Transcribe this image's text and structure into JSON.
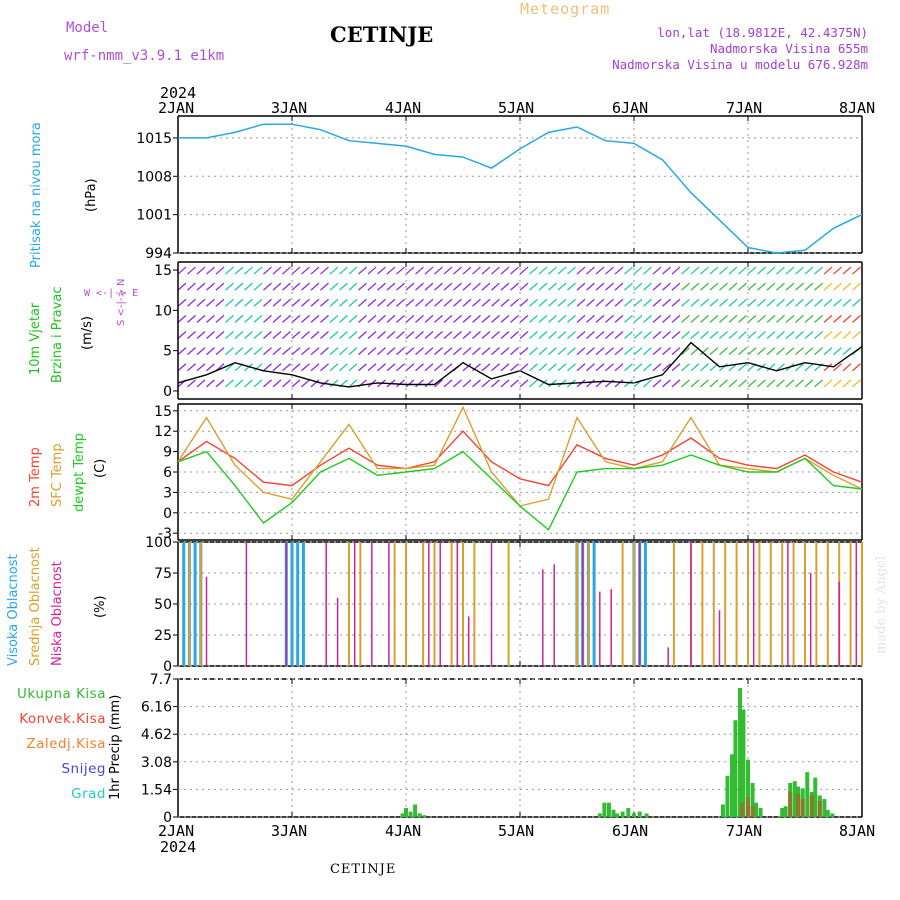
{
  "header": {
    "model_label": "Model",
    "model_name": "wrf-nmm_v3.9.1 e1km",
    "title": "CETINJE",
    "meteogram": "Meteogram",
    "lonlat": "lon,lat (18.9812E, 42.4375N)",
    "elevation": "Nadmorska Visina 655m",
    "elevation_model": "Nadmorska Visina u modelu 676.928m"
  },
  "time_axis": {
    "year": "2024",
    "ticks": [
      "2JAN",
      "3JAN",
      "4JAN",
      "5JAN",
      "6JAN",
      "7JAN",
      "8JAN"
    ]
  },
  "footer": {
    "location": "CETINJE",
    "made_by": "made by Angel"
  },
  "colors": {
    "pressure": "#2aa7e2",
    "wind_title": "#22c022",
    "temp2m": "#ee4433",
    "sfc": "#d8a030",
    "dew": "#22c822",
    "cloud_high": "#2aa7e2",
    "cloud_mid": "#d8a030",
    "cloud_low": "#cc2299",
    "precip": "#33bb33",
    "convective": "#ee4433",
    "stratiform": "#f08030",
    "snow": "#4444dd",
    "hail": "#22c8c8"
  },
  "labels": {
    "pressure": "Pritisak na nivou mora",
    "pressure_unit": "(hPa)",
    "wind_title1": "10m Vjetar",
    "wind_title2": "Brzina i Pravac",
    "wind_unit": "(m/s)",
    "compass_ns": "S <-|-> N",
    "compass_we": "W <-|-> E",
    "temp_2m": "2m Temp",
    "temp_sfc": "SFC Temp",
    "temp_dew": "dewpt Temp",
    "temp_unit": "(C)",
    "cloud_high": "Visoka Oblacnost",
    "cloud_mid": "Srednja Oblacnost",
    "cloud_low": "Niska Oblacnost",
    "cloud_unit": "(%)",
    "precip_total": "Ukupna Kisa",
    "precip_conv": "Konvek.Kisa",
    "precip_strat": "Zaledj.Kisa",
    "precip_snow": "Snijeg",
    "precip_hail": "Grad",
    "precip_unit": "1hr Precip (mm)"
  },
  "chart_data": [
    {
      "type": "line",
      "title": "Pritisak na nivou mora",
      "ylabel": "(hPa)",
      "ylim": [
        994,
        1019
      ],
      "yticks": [
        "994",
        "1001",
        "1008",
        "1015"
      ],
      "xlabel_ticks": [
        "2JAN",
        "3JAN",
        "4JAN",
        "5JAN",
        "6JAN",
        "7JAN",
        "8JAN"
      ],
      "x": [
        0,
        0.25,
        0.5,
        0.75,
        1.0,
        1.25,
        1.5,
        1.75,
        2.0,
        2.25,
        2.5,
        2.75,
        3.0,
        3.25,
        3.5,
        3.75,
        4.0,
        4.25,
        4.5,
        4.75,
        5.0,
        5.25,
        5.5,
        5.75,
        6.0
      ],
      "series": [
        {
          "values": [
            1015,
            1015,
            1016,
            1017.5,
            1017.5,
            1016.5,
            1014.5,
            1014,
            1013.5,
            1012,
            1011.5,
            1009.5,
            1013,
            1016,
            1017,
            1014.5,
            1014,
            1011,
            1005,
            1000,
            995,
            994,
            994.5,
            998.5,
            1001
          ]
        }
      ],
      "grid": true
    },
    {
      "type": "line",
      "title": "10m Vjetar Brzina i Pravac",
      "ylabel": "(m/s)",
      "ylim": [
        -1,
        16
      ],
      "yticks": [
        "0",
        "5",
        "10",
        "15"
      ],
      "x": [
        0,
        0.25,
        0.5,
        0.75,
        1.0,
        1.25,
        1.5,
        1.75,
        2.0,
        2.25,
        2.5,
        2.75,
        3.0,
        3.25,
        3.5,
        3.75,
        4.0,
        4.25,
        4.5,
        4.75,
        5.0,
        5.25,
        5.5,
        5.75,
        6.0
      ],
      "series": [
        {
          "values": [
            1,
            2,
            3.5,
            2.5,
            2,
            1,
            0.5,
            1,
            0.8,
            0.8,
            3.5,
            1.5,
            2.5,
            0.8,
            1,
            1.2,
            1,
            2,
            6,
            3,
            3.5,
            2.5,
            3.5,
            3,
            5.5
          ]
        }
      ],
      "grid": true
    },
    {
      "type": "line",
      "title": "2m Temp / SFC Temp / dewpt Temp",
      "ylabel": "(C)",
      "ylim": [
        -4,
        16
      ],
      "yticks": [
        "-3",
        "0",
        "3",
        "6",
        "9",
        "12",
        "15"
      ],
      "x": [
        0,
        0.25,
        0.5,
        0.75,
        1.0,
        1.25,
        1.5,
        1.75,
        2.0,
        2.25,
        2.5,
        2.75,
        3.0,
        3.25,
        3.5,
        3.75,
        4.0,
        4.25,
        4.5,
        4.75,
        5.0,
        5.25,
        5.5,
        5.75,
        6.0
      ],
      "series": [
        {
          "name": "2m Temp",
          "values": [
            7.5,
            10.5,
            8,
            4.5,
            4,
            7,
            9.5,
            7,
            6.5,
            7.5,
            12,
            7.5,
            5,
            4,
            10,
            8,
            7,
            8.5,
            11,
            8,
            7,
            6.5,
            8.5,
            6,
            4.5
          ]
        },
        {
          "name": "SFC Temp",
          "values": [
            7.5,
            14,
            7,
            3,
            2,
            7.5,
            13,
            6.5,
            6.5,
            7,
            15.5,
            6,
            1,
            2,
            14,
            7.5,
            6.5,
            7.5,
            14,
            7,
            6.5,
            6,
            8,
            5.5,
            3.5
          ]
        },
        {
          "name": "dewpt Temp",
          "values": [
            7.5,
            9,
            4,
            -1.5,
            1.5,
            6,
            8,
            5.5,
            6,
            6.5,
            9,
            5,
            1,
            -2.5,
            6,
            6.5,
            6.5,
            7,
            8.5,
            7,
            6,
            6,
            8,
            4,
            3.5
          ]
        }
      ],
      "grid": true
    },
    {
      "type": "bar",
      "title": "Visoka / Srednja / Niska Oblacnost",
      "ylabel": "(%)",
      "ylim": [
        0,
        100
      ],
      "yticks": [
        "0",
        "25",
        "50",
        "75",
        "100"
      ],
      "series": [
        {
          "name": "Visoka Oblacnost",
          "x": [
            0.05,
            0.1,
            0.15,
            0.2,
            0.95,
            1.0,
            1.05,
            1.1,
            3.5,
            3.55,
            3.6,
            3.65,
            4.0,
            4.05,
            4.1
          ],
          "values": [
            100,
            100,
            100,
            100,
            100,
            100,
            100,
            100,
            100,
            100,
            100,
            100,
            100,
            100,
            100
          ]
        },
        {
          "name": "Srednja Oblacnost",
          "x": [
            0.1,
            0.2,
            1.5,
            1.6,
            1.9,
            2.0,
            2.15,
            2.25,
            2.4,
            2.5,
            2.6,
            2.9,
            3.5,
            3.6,
            3.9,
            4.0,
            4.35,
            4.5,
            4.6,
            4.7,
            4.8,
            4.9,
            5.0,
            5.1,
            5.2,
            5.3,
            5.4,
            5.5,
            5.6,
            5.7,
            5.8,
            5.9,
            6.0
          ],
          "values": [
            100,
            100,
            100,
            100,
            100,
            100,
            100,
            100,
            100,
            100,
            100,
            100,
            100,
            100,
            100,
            100,
            100,
            100,
            100,
            100,
            100,
            100,
            100,
            100,
            100,
            100,
            100,
            100,
            100,
            100,
            100,
            100,
            100
          ]
        },
        {
          "name": "Niska Oblacnost",
          "x": [
            0.25,
            0.6,
            0.95,
            1.3,
            1.4,
            1.55,
            1.7,
            1.85,
            2.2,
            2.3,
            2.45,
            2.55,
            2.75,
            3.2,
            3.3,
            3.55,
            3.7,
            3.8,
            4.05,
            4.3,
            4.5,
            4.75,
            5.05,
            5.35,
            5.55,
            5.8,
            5.95
          ],
          "values": [
            72,
            100,
            100,
            100,
            55,
            100,
            100,
            100,
            100,
            100,
            100,
            40,
            100,
            78,
            82,
            100,
            60,
            62,
            100,
            15,
            100,
            45,
            100,
            100,
            75,
            68,
            100
          ]
        }
      ],
      "grid": true
    },
    {
      "type": "bar",
      "title": "1hr Precip",
      "ylabel": "1hr Precip (mm)",
      "ylim": [
        0,
        7.7
      ],
      "yticks": [
        "0",
        "1.54",
        "3.08",
        "4.62",
        "6.16",
        "7.7"
      ],
      "series": [
        {
          "name": "Ukupna Kisa",
          "x": [
            1.97,
            2.0,
            2.04,
            2.08,
            2.12,
            2.16,
            3.7,
            3.74,
            3.78,
            3.82,
            3.85,
            3.9,
            3.95,
            4.0,
            4.05,
            4.11,
            4.78,
            4.82,
            4.86,
            4.89,
            4.93,
            4.96,
            5.0,
            5.04,
            5.07,
            5.11,
            5.3,
            5.33,
            5.37,
            5.41,
            5.44,
            5.48,
            5.52,
            5.56,
            5.59,
            5.63,
            5.67,
            5.7,
            5.74
          ],
          "values": [
            0.2,
            0.5,
            0.3,
            0.7,
            0.2,
            0.1,
            0.2,
            0.8,
            0.8,
            0.4,
            0.2,
            0.3,
            0.5,
            0.2,
            0.3,
            0.2,
            0.7,
            2.3,
            3.5,
            5.4,
            7.2,
            6.0,
            3.2,
            1.9,
            0.8,
            0.5,
            0.5,
            0.6,
            1.9,
            2.0,
            1.7,
            1.6,
            2.5,
            1.4,
            2.2,
            1.2,
            1.0,
            0.4,
            0.2
          ]
        },
        {
          "name": "Zaledj.Kisa",
          "x": [
            4.95,
            5.0,
            5.04,
            5.37,
            5.44,
            5.48,
            5.56,
            5.63
          ],
          "values": [
            0.8,
            1.1,
            0.6,
            1.4,
            1.3,
            1.0,
            1.2,
            0.9
          ]
        }
      ],
      "grid": true
    }
  ]
}
